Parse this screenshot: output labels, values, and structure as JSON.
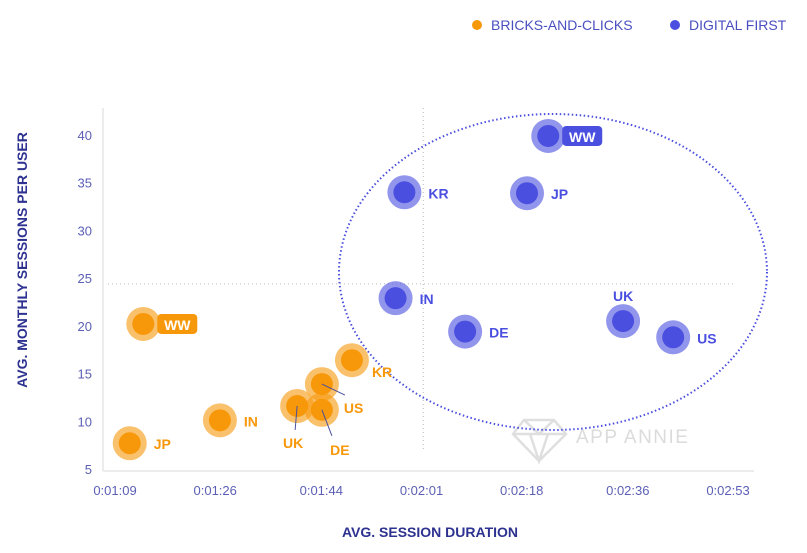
{
  "chart_data": {
    "type": "scatter",
    "title": "",
    "xlabel": "AVG. SESSION DURATION",
    "ylabel": "AVG. MONTHLY SESSIONS PER USER",
    "x_unit": "seconds",
    "xlim": [
      69,
      173
    ],
    "ylim": [
      5,
      42
    ],
    "x_ticks": [
      69,
      86,
      104,
      121,
      138,
      156,
      173
    ],
    "x_tick_labels": [
      "0:01:09",
      "0:01:26",
      "0:01:44",
      "0:02:01",
      "0:02:18",
      "0:02:36",
      "0:02:53"
    ],
    "y_ticks": [
      5,
      10,
      15,
      20,
      25,
      30,
      35,
      40
    ],
    "y_tick_labels": [
      "5",
      "10",
      "15",
      "20",
      "25",
      "30",
      "35",
      "40"
    ],
    "reference_lines": {
      "x": 121.3,
      "y": 24.4
    },
    "legend_position": "top-right",
    "watermark": "APP ANNIE",
    "series": [
      {
        "name": "BRICKS-AND-CLICKS",
        "color": "#f7980a",
        "points": [
          {
            "label": "WW",
            "x": 73.8,
            "y": 20.2,
            "label_pos": "right-badge"
          },
          {
            "label": "JP",
            "x": 71.5,
            "y": 7.7,
            "label_pos": "right"
          },
          {
            "label": "IN",
            "x": 86.8,
            "y": 10.1,
            "label_pos": "right"
          },
          {
            "label": "UK",
            "x": 99.9,
            "y": 11.6,
            "label_pos": "below-leader"
          },
          {
            "label": "DE",
            "x": 104.1,
            "y": 11.2,
            "label_pos": "below-right-leader"
          },
          {
            "label": "US",
            "x": 104.1,
            "y": 13.9,
            "label_pos": "right-leader"
          },
          {
            "label": "KR",
            "x": 109.2,
            "y": 16.4,
            "label_pos": "below-right"
          }
        ]
      },
      {
        "name": "DIGITAL FIRST",
        "color": "#4a4fe0",
        "points": [
          {
            "label": "WW",
            "x": 142.5,
            "y": 39.9,
            "label_pos": "right-badge"
          },
          {
            "label": "KR",
            "x": 118.1,
            "y": 34.0,
            "label_pos": "right"
          },
          {
            "label": "JP",
            "x": 138.9,
            "y": 33.9,
            "label_pos": "right"
          },
          {
            "label": "IN",
            "x": 116.6,
            "y": 22.9,
            "label_pos": "right"
          },
          {
            "label": "DE",
            "x": 128.4,
            "y": 19.4,
            "label_pos": "right"
          },
          {
            "label": "UK",
            "x": 155.2,
            "y": 20.5,
            "label_pos": "above"
          },
          {
            "label": "US",
            "x": 163.7,
            "y": 18.8,
            "label_pos": "right"
          }
        ]
      }
    ]
  }
}
